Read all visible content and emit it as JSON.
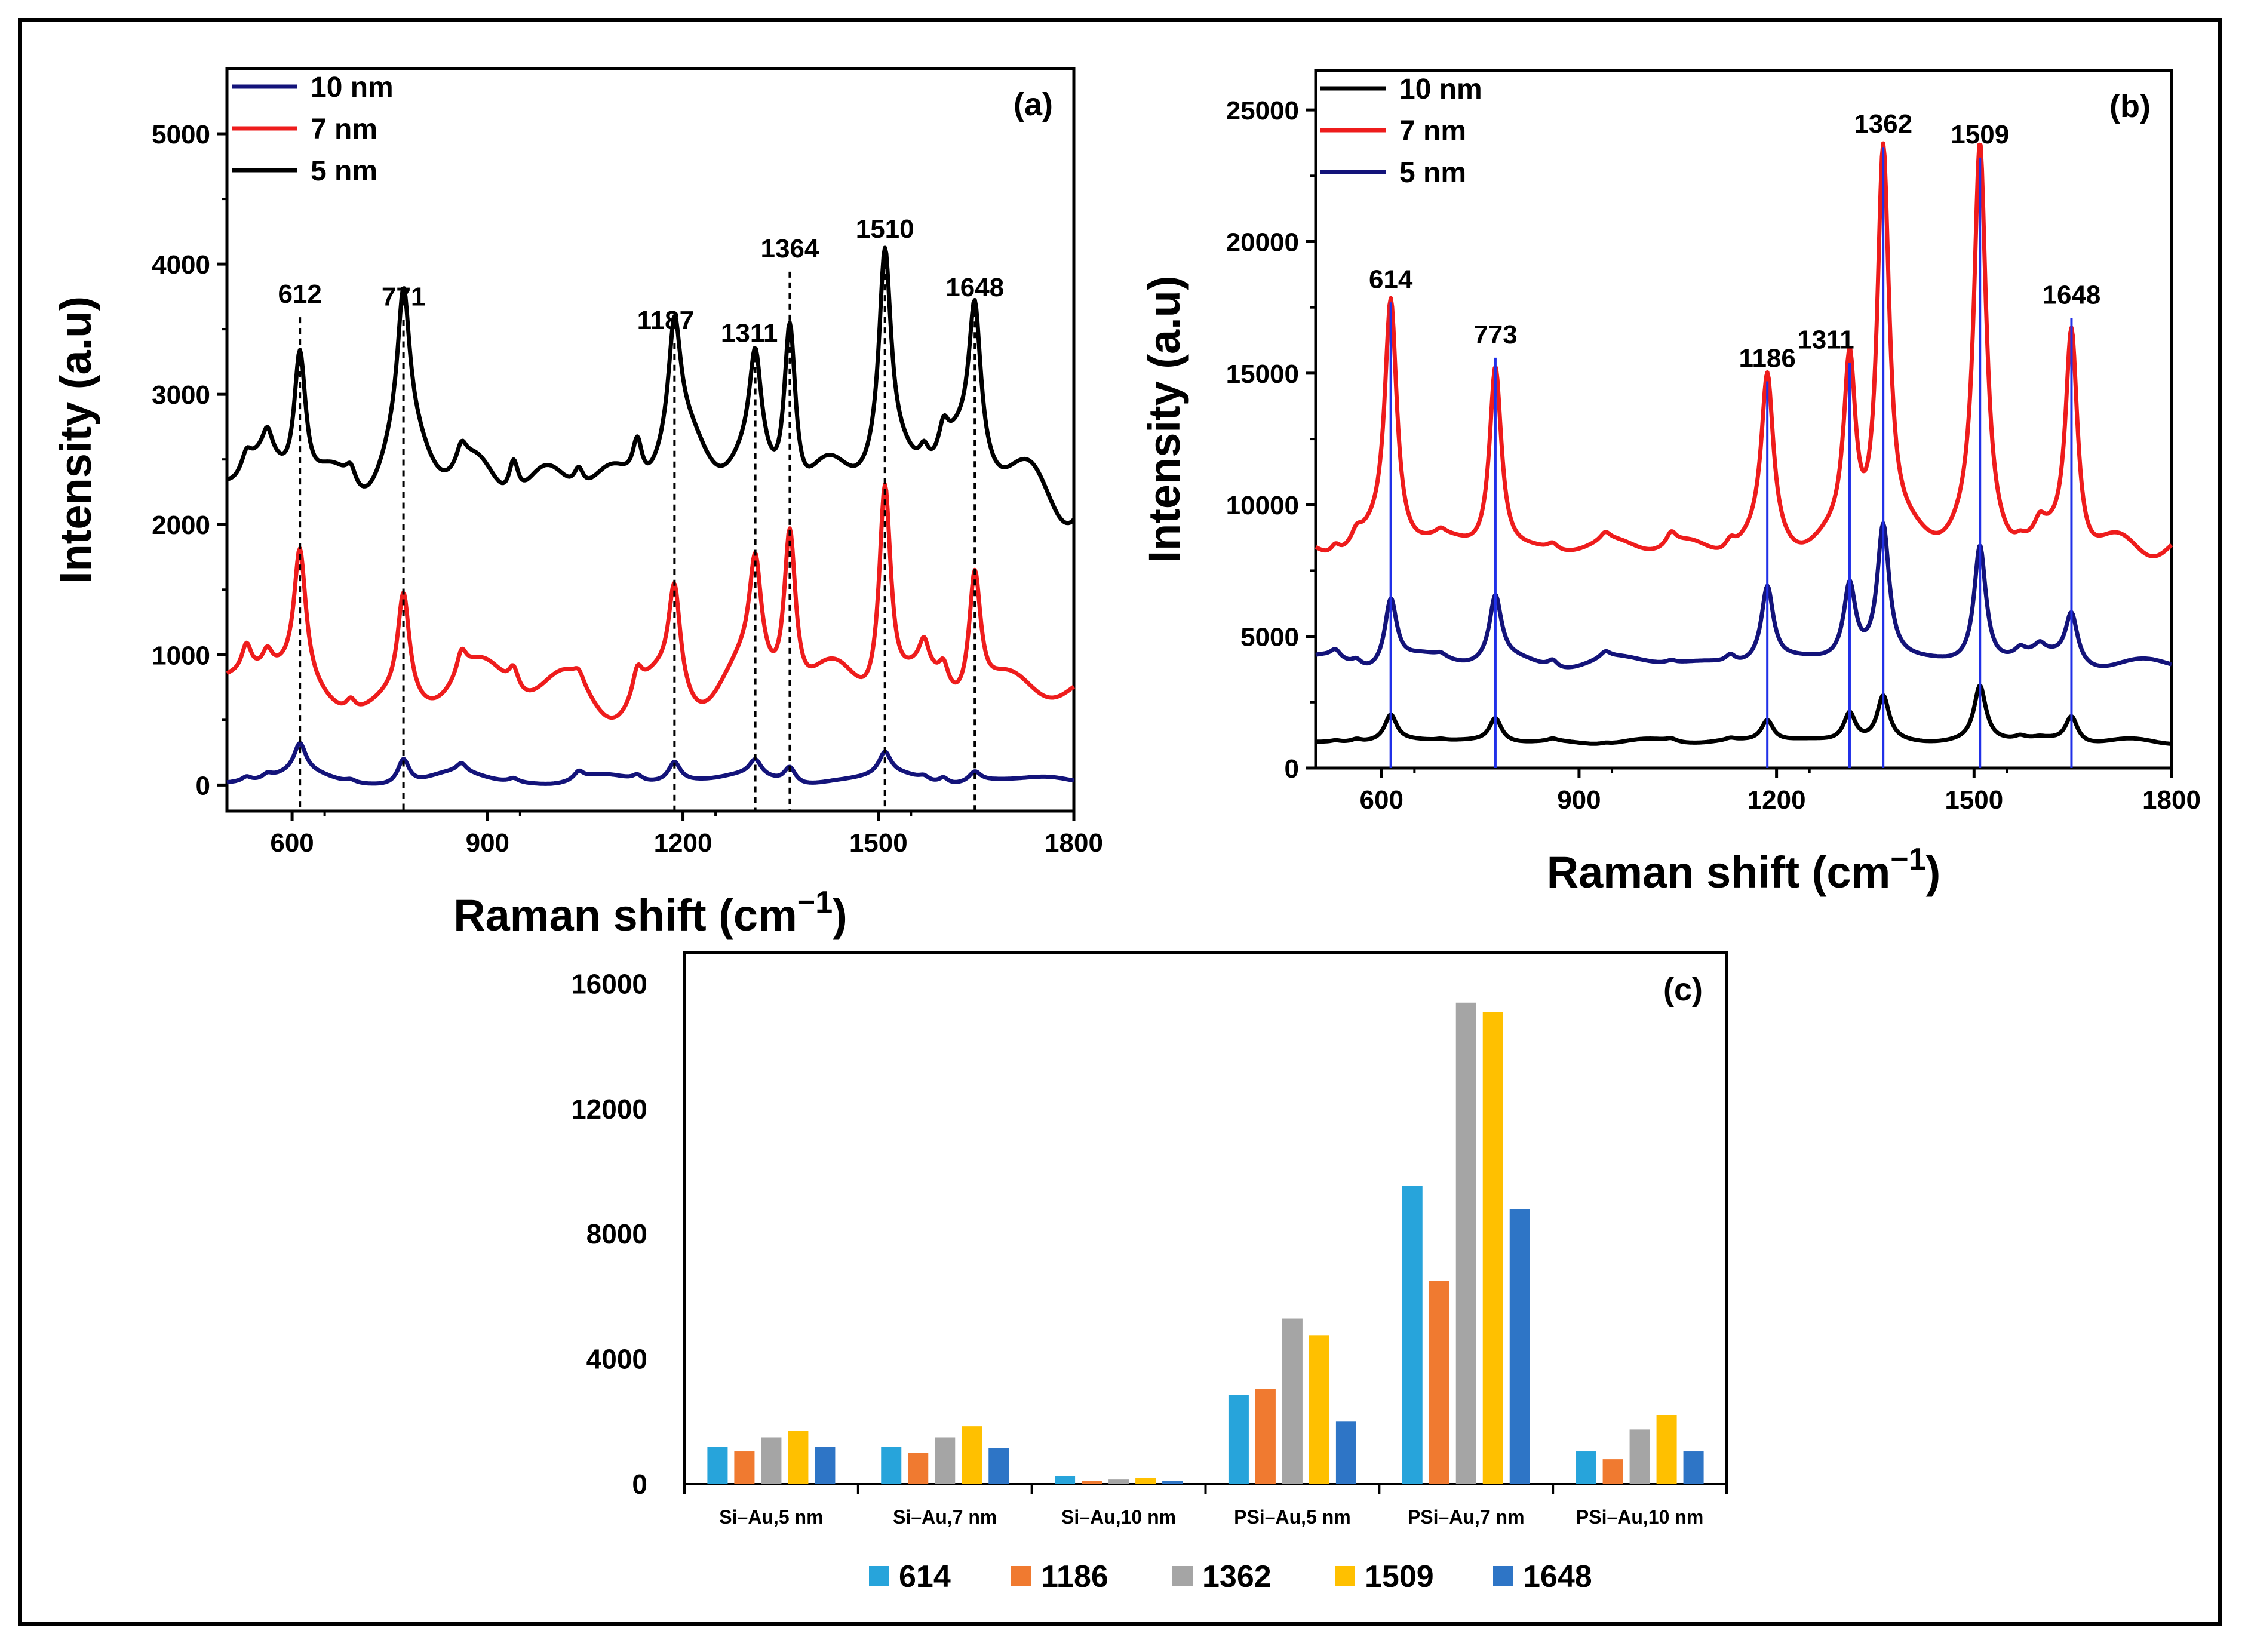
{
  "colors": {
    "black": "#000000",
    "red": "#ee1c1c",
    "navy": "#13137a",
    "blue_line": "#2030e8",
    "s614": "#27a4db",
    "s1186": "#f07a30",
    "s1362": "#a5a5a5",
    "s1509": "#ffc000",
    "s1648": "#2e75c6"
  },
  "chart_data": [
    {
      "type": "line",
      "panel_label": "(a)",
      "xlabel": "Raman shift (cm",
      "xlabel_sup": "−1",
      "xlabel_close": ")",
      "ylabel": "Intensity (a.u)",
      "xlim": [
        500,
        1800
      ],
      "ylim": [
        -200,
        5500
      ],
      "xticks": [
        600,
        900,
        1200,
        1500,
        1800
      ],
      "yticks": [
        0,
        1000,
        2000,
        3000,
        4000,
        5000
      ],
      "peaks": [
        612,
        771,
        1187,
        1311,
        1364,
        1510,
        1648
      ],
      "series": [
        {
          "name": "10 nm",
          "color": "navy",
          "baseline": 40,
          "amplitudes": [
            220,
            200,
            150,
            120,
            130,
            170,
            80
          ],
          "noise": 80
        },
        {
          "name": "7 nm",
          "color": "red",
          "baseline": 720,
          "amplitudes": [
            1000,
            820,
            800,
            830,
            1330,
            1700,
            1020
          ],
          "noise": 300
        },
        {
          "name": "5 nm",
          "color": "black",
          "baseline": 2400,
          "amplitudes": [
            1100,
            1080,
            900,
            800,
            1450,
            1600,
            1150
          ],
          "noise": 400
        }
      ],
      "legend_order": [
        "10 nm",
        "7 nm",
        "5 nm"
      ]
    },
    {
      "type": "line",
      "panel_label": "(b)",
      "xlabel": "Raman shift (cm",
      "xlabel_sup": "−1",
      "xlabel_close": ")",
      "ylabel": "Intensity (a.u)",
      "xlim": [
        500,
        1800
      ],
      "ylim": [
        0,
        26500
      ],
      "xticks": [
        600,
        900,
        1200,
        1500,
        1800
      ],
      "yticks": [
        0,
        5000,
        10000,
        15000,
        20000,
        25000
      ],
      "peaks": [
        614,
        773,
        1186,
        1311,
        1362,
        1509,
        1648
      ],
      "series": [
        {
          "name": "10 nm",
          "color": "black",
          "baseline": 1000,
          "amplitudes": [
            1000,
            900,
            800,
            1100,
            1700,
            2100,
            1000
          ],
          "noise": 150
        },
        {
          "name": "7 nm",
          "color": "red",
          "baseline": 8300,
          "amplitudes": [
            9300,
            7200,
            6300,
            7000,
            15200,
            14800,
            8700
          ],
          "noise": 600
        },
        {
          "name": "5 nm",
          "color": "navy",
          "baseline": 4000,
          "amplitudes": [
            2600,
            2500,
            2900,
            2900,
            5100,
            4600,
            1900
          ],
          "noise": 350
        }
      ],
      "legend_order": [
        "10 nm",
        "7 nm",
        "5 nm"
      ]
    },
    {
      "type": "bar",
      "panel_label": "(c)",
      "categories": [
        "Si–Au,5 nm",
        "Si–Au,7 nm",
        "Si–Au,10 nm",
        "PSi–Au,5 nm",
        "PSi–Au,7 nm",
        "PSi–Au,10 nm"
      ],
      "ylim": [
        0,
        17000
      ],
      "yticks": [
        0,
        4000,
        8000,
        12000,
        16000
      ],
      "series": [
        {
          "name": "614",
          "color": "s614",
          "values": [
            1200,
            1200,
            250,
            2850,
            9550,
            1050
          ]
        },
        {
          "name": "1186",
          "color": "s1186",
          "values": [
            1050,
            1000,
            100,
            3050,
            6500,
            800
          ]
        },
        {
          "name": "1362",
          "color": "s1362",
          "values": [
            1500,
            1500,
            150,
            5300,
            15400,
            1750
          ]
        },
        {
          "name": "1509",
          "color": "s1509",
          "values": [
            1700,
            1850,
            200,
            4750,
            15100,
            2200
          ]
        },
        {
          "name": "1648",
          "color": "s1648",
          "values": [
            1200,
            1150,
            100,
            2000,
            8800,
            1050
          ]
        }
      ]
    }
  ]
}
